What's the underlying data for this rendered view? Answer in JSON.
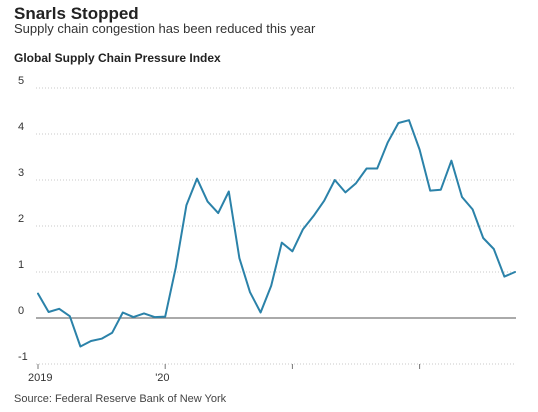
{
  "header": {
    "title": "Snarls Stopped",
    "subtitle": "Supply chain congestion has been reduced this year",
    "chart_label": "Global Supply Chain Pressure Index"
  },
  "footer": {
    "source": "Source: Federal Reserve Bank of New York"
  },
  "colors": {
    "line": "#2b82a9",
    "grid": "#c8c8c8",
    "zero_line": "#777777",
    "tick_text": "#333333"
  },
  "chart_data": {
    "type": "line",
    "title": "Global Supply Chain Pressure Index",
    "xlabel": "",
    "ylabel": "",
    "ylim": [
      -1,
      5
    ],
    "yticks": [
      -1,
      0,
      1,
      2,
      3,
      4,
      5
    ],
    "grid": true,
    "x_tick_labels": [
      {
        "label": "2019",
        "month_index": 0
      },
      {
        "label": "'20",
        "month_index": 12
      },
      {
        "label": "",
        "month_index": 24
      },
      {
        "label": "",
        "month_index": 36
      },
      {
        "label": "",
        "month_index": 48
      }
    ],
    "series": [
      {
        "name": "",
        "start": "2019-01",
        "frequency": "monthly",
        "values": [
          0.53,
          0.13,
          0.2,
          0.04,
          -0.62,
          -0.5,
          -0.45,
          -0.32,
          0.12,
          0.02,
          0.1,
          0.02,
          0.03,
          1.1,
          2.45,
          3.03,
          2.53,
          2.28,
          2.75,
          1.3,
          0.56,
          0.12,
          0.7,
          1.64,
          1.45,
          1.93,
          2.22,
          2.55,
          3.0,
          2.73,
          2.93,
          3.25,
          3.25,
          3.82,
          4.24,
          4.3,
          3.66,
          2.77,
          2.79,
          3.42,
          2.63,
          2.36,
          1.74,
          1.5,
          0.9,
          1.0
        ]
      }
    ]
  }
}
